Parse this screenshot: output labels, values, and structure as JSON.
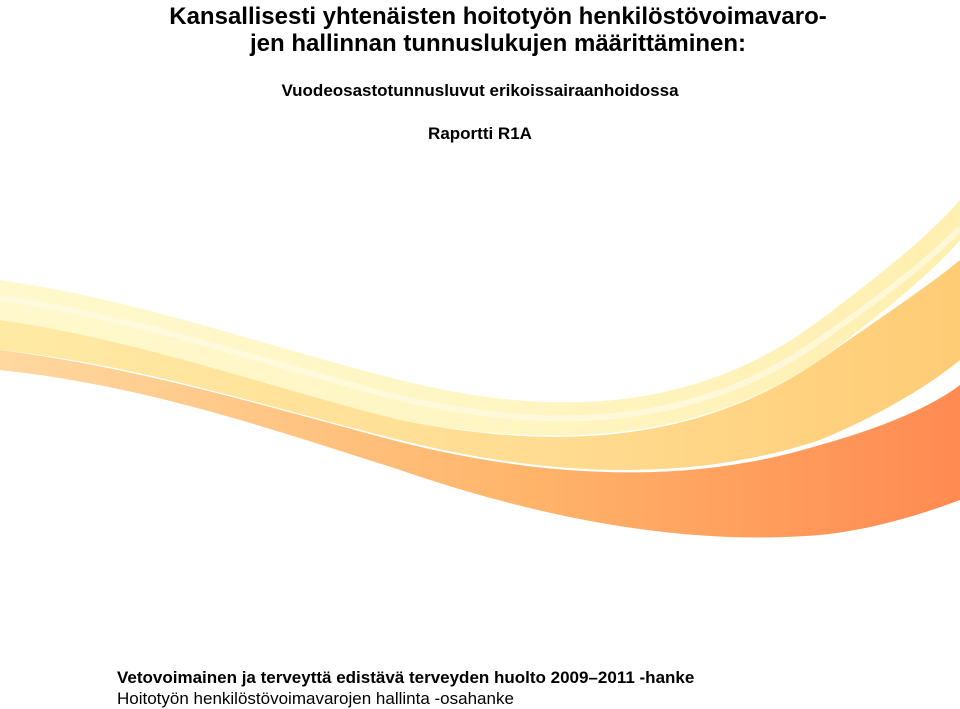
{
  "document": {
    "title_line1": "Kansallisesti yhtenäisten hoitotyön henkilöstövoimavaro-",
    "title_line2": "jen hallinnan tunnuslukujen määrittäminen:",
    "subtitle": "Vuodeosastotunnusluvut erikoissairaanhoidossa",
    "report_label": "Raportti R1A"
  },
  "footer": {
    "project": "Vetovoimainen ja terveyttä edistävä terveyden huolto 2009–2011 -hanke",
    "subproject": "Hoitotyön henkilöstövoimavarojen hallinta -osahanke"
  },
  "colors": {
    "wave_light": "#fff3b8",
    "wave_mid": "#ffd27a",
    "wave_orange": "#ffa54f",
    "wave_deep": "#ff8a4a"
  }
}
